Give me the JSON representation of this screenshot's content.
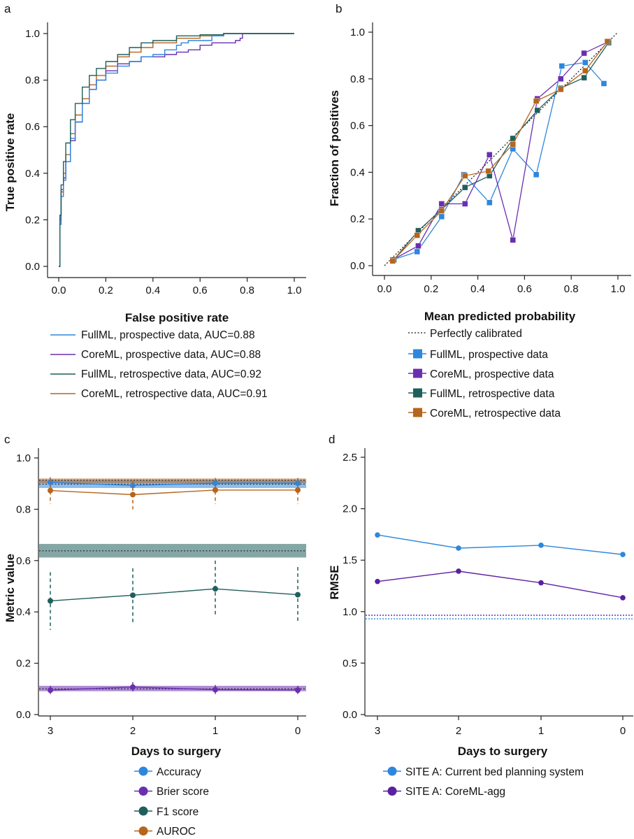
{
  "colors": {
    "full_prospective": "#2e86de",
    "core_prospective": "#6a2fb0",
    "full_retrospective": "#1f5f5b",
    "core_retrospective": "#b5651d",
    "accuracy": "#2e86de",
    "brier": "#6a2fb0",
    "f1": "#1f5f5b",
    "auroc": "#b5651d",
    "rmse_current": "#2e86de",
    "rmse_coreml": "#5b1fa0"
  },
  "chart_data": [
    {
      "panel": "a",
      "type": "line",
      "xlabel": "False positive rate",
      "ylabel": "True positive rate",
      "xlim": [
        0,
        1
      ],
      "ylim": [
        0,
        1
      ],
      "xticks": [
        "0.0",
        "0.2",
        "0.4",
        "0.6",
        "0.8",
        "1.0"
      ],
      "yticks": [
        "0.0",
        "0.2",
        "0.4",
        "0.6",
        "0.8",
        "1.0"
      ],
      "grid": false,
      "legend_position": "below",
      "series": [
        {
          "name": "FullML, prospective data, AUC=0.88",
          "color_key": "full_prospective",
          "x": [
            0,
            0.005,
            0.01,
            0.02,
            0.03,
            0.05,
            0.07,
            0.1,
            0.13,
            0.16,
            0.2,
            0.25,
            0.3,
            0.35,
            0.4,
            0.45,
            0.5,
            0.52,
            0.55,
            0.6,
            0.65,
            0.7,
            0.72,
            0.75,
            1.0
          ],
          "y": [
            0,
            0.18,
            0.3,
            0.37,
            0.45,
            0.55,
            0.62,
            0.7,
            0.76,
            0.8,
            0.83,
            0.86,
            0.88,
            0.9,
            0.91,
            0.93,
            0.95,
            0.96,
            0.97,
            0.97,
            0.99,
            1.0,
            1.0,
            1.0,
            1.0
          ]
        },
        {
          "name": "CoreML, prospective data, AUC=0.88",
          "color_key": "core_prospective",
          "x": [
            0,
            0.005,
            0.01,
            0.02,
            0.03,
            0.05,
            0.07,
            0.1,
            0.13,
            0.16,
            0.2,
            0.25,
            0.3,
            0.35,
            0.4,
            0.45,
            0.5,
            0.55,
            0.6,
            0.65,
            0.7,
            0.75,
            0.77,
            0.78,
            1.0
          ],
          "y": [
            0,
            0.2,
            0.33,
            0.38,
            0.45,
            0.54,
            0.62,
            0.7,
            0.76,
            0.8,
            0.84,
            0.87,
            0.88,
            0.9,
            0.9,
            0.91,
            0.92,
            0.93,
            0.95,
            0.96,
            0.96,
            0.97,
            0.98,
            1.0,
            1.0
          ]
        },
        {
          "name": "FullML, retrospective data, AUC=0.92",
          "color_key": "full_retrospective",
          "x": [
            0,
            0.005,
            0.01,
            0.02,
            0.03,
            0.05,
            0.07,
            0.1,
            0.13,
            0.16,
            0.2,
            0.25,
            0.3,
            0.35,
            0.4,
            0.5,
            0.6,
            0.7,
            0.8,
            1.0
          ],
          "y": [
            0,
            0.22,
            0.35,
            0.45,
            0.53,
            0.63,
            0.7,
            0.77,
            0.82,
            0.85,
            0.88,
            0.91,
            0.94,
            0.96,
            0.97,
            0.99,
            0.995,
            1.0,
            1.0,
            1.0
          ]
        },
        {
          "name": "CoreML, retrospective data, AUC=0.91",
          "color_key": "core_retrospective",
          "x": [
            0,
            0.005,
            0.01,
            0.02,
            0.03,
            0.05,
            0.07,
            0.1,
            0.13,
            0.16,
            0.2,
            0.25,
            0.3,
            0.35,
            0.4,
            0.5,
            0.6,
            0.7,
            0.8,
            1.0
          ],
          "y": [
            0,
            0.2,
            0.32,
            0.4,
            0.48,
            0.57,
            0.65,
            0.72,
            0.78,
            0.82,
            0.86,
            0.9,
            0.92,
            0.94,
            0.96,
            0.98,
            0.99,
            1.0,
            1.0,
            1.0
          ]
        }
      ]
    },
    {
      "panel": "b",
      "type": "line",
      "xlabel": "Mean predicted probability",
      "ylabel": "Fraction of positives",
      "xlim": [
        0,
        1
      ],
      "ylim": [
        0,
        1
      ],
      "xticks": [
        "0.0",
        "0.2",
        "0.4",
        "0.6",
        "0.8",
        "1.0"
      ],
      "yticks": [
        "0.0",
        "0.2",
        "0.4",
        "0.6",
        "0.8",
        "1.0"
      ],
      "grid": false,
      "legend_position": "below",
      "reference": {
        "name": "Perfectly calibrated",
        "x": [
          0,
          1
        ],
        "y": [
          0,
          1
        ]
      },
      "series": [
        {
          "name": "FullML, prospective data",
          "color_key": "full_prospective",
          "x": [
            0.035,
            0.14,
            0.245,
            0.34,
            0.45,
            0.55,
            0.65,
            0.76,
            0.86,
            0.94
          ],
          "y": [
            0.025,
            0.06,
            0.21,
            0.39,
            0.27,
            0.5,
            0.39,
            0.855,
            0.87,
            0.78
          ]
        },
        {
          "name": "CoreML, prospective data",
          "color_key": "core_prospective",
          "x": [
            0.035,
            0.145,
            0.245,
            0.345,
            0.45,
            0.55,
            0.655,
            0.755,
            0.855,
            0.96
          ],
          "y": [
            0.025,
            0.085,
            0.265,
            0.265,
            0.475,
            0.11,
            0.715,
            0.8,
            0.91,
            0.96
          ]
        },
        {
          "name": "FullML, retrospective data",
          "color_key": "full_retrospective",
          "x": [
            0.04,
            0.145,
            0.245,
            0.345,
            0.45,
            0.55,
            0.655,
            0.755,
            0.855,
            0.96
          ],
          "y": [
            0.025,
            0.15,
            0.24,
            0.335,
            0.385,
            0.545,
            0.665,
            0.76,
            0.805,
            0.955
          ]
        },
        {
          "name": "CoreML, retrospective data",
          "color_key": "core_retrospective",
          "x": [
            0.035,
            0.14,
            0.245,
            0.345,
            0.445,
            0.55,
            0.65,
            0.755,
            0.86,
            0.955
          ],
          "y": [
            0.02,
            0.13,
            0.235,
            0.385,
            0.405,
            0.52,
            0.705,
            0.755,
            0.835,
            0.96
          ]
        }
      ]
    },
    {
      "panel": "c",
      "type": "line",
      "xlabel": "Days to surgery",
      "ylabel": "Metric value",
      "categories": [
        "3",
        "2",
        "1",
        "0"
      ],
      "ylim": [
        0,
        1.05
      ],
      "yticks": [
        "0.0",
        "0.2",
        "0.4",
        "0.6",
        "0.8",
        "1.0"
      ],
      "grid": false,
      "legend_position": "below",
      "series": [
        {
          "name": "Accuracy",
          "color_key": "accuracy",
          "values": [
            0.905,
            0.893,
            0.902,
            0.902
          ],
          "err_low": [
            0.885,
            0.875,
            0.885,
            0.885
          ],
          "err_high": [
            0.925,
            0.91,
            0.922,
            0.922
          ],
          "band": [
            0.883,
            0.913
          ],
          "band_line": 0.898
        },
        {
          "name": "Brier score",
          "color_key": "brier",
          "values": [
            0.095,
            0.107,
            0.097,
            0.095
          ],
          "err_low": [
            0.08,
            0.09,
            0.08,
            0.08
          ],
          "err_high": [
            0.112,
            0.126,
            0.115,
            0.112
          ],
          "band": [
            0.091,
            0.112
          ],
          "band_line": 0.1
        },
        {
          "name": "F1 score",
          "color_key": "f1",
          "values": [
            0.443,
            0.465,
            0.49,
            0.467
          ],
          "err_low": [
            0.33,
            0.355,
            0.38,
            0.36
          ],
          "err_high": [
            0.555,
            0.57,
            0.6,
            0.575
          ],
          "band": [
            0.612,
            0.665
          ],
          "band_line": 0.638
        },
        {
          "name": "AUROC",
          "color_key": "auroc",
          "values": [
            0.873,
            0.857,
            0.875,
            0.875
          ],
          "err_low": [
            0.82,
            0.8,
            0.82,
            0.82
          ],
          "err_high": [
            0.92,
            0.91,
            0.92,
            0.92
          ],
          "band": [
            0.902,
            0.92
          ],
          "band_line": 0.913
        }
      ]
    },
    {
      "panel": "d",
      "type": "line",
      "xlabel": "Days to surgery",
      "ylabel": "RMSE",
      "categories": [
        "3",
        "2",
        "1",
        "0"
      ],
      "ylim": [
        0,
        2.55
      ],
      "yticks": [
        "0.0",
        "0.5",
        "1.0",
        "1.5",
        "2.0",
        "2.5"
      ],
      "grid": false,
      "legend_position": "below",
      "series": [
        {
          "name": "SITE A: Current bed planning system",
          "color_key": "rmse_current",
          "values": [
            1.745,
            1.617,
            1.645,
            1.555
          ],
          "ref_line": 0.93
        },
        {
          "name": "SITE A: CoreML-agg",
          "color_key": "rmse_coreml",
          "values": [
            1.293,
            1.393,
            1.28,
            1.135
          ],
          "ref_line": 0.965
        }
      ]
    }
  ]
}
